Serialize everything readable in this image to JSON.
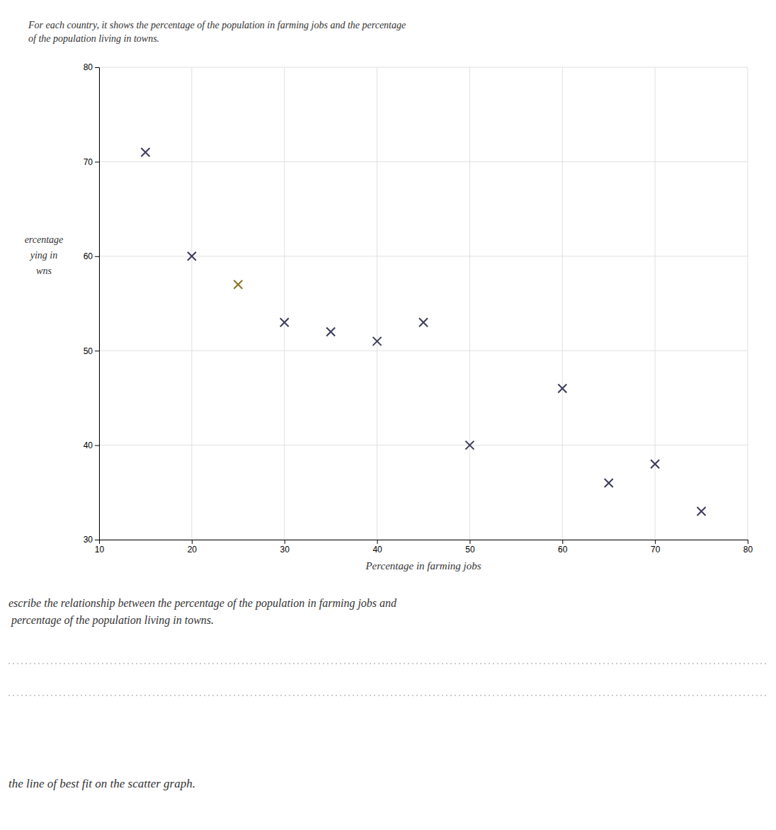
{
  "chart_data": {
    "type": "scatter",
    "subtitle": [
      "For each country, it shows the percentage of the population in farming jobs and the percentage",
      "of the population living in towns."
    ],
    "xlabel": "Percentage in farming jobs",
    "ylabel": [
      "ercentage",
      "ying in",
      "wns"
    ],
    "x": [
      15,
      20,
      25,
      30,
      35,
      40,
      45,
      50,
      60,
      65,
      70,
      75
    ],
    "values": [
      71,
      60,
      57,
      53,
      52,
      51,
      53,
      40,
      46,
      36,
      38,
      33
    ],
    "colors": [
      "#3a3a5a",
      "#3a3a5a",
      "#8a7020",
      "#3a3a5a",
      "#3a3a5a",
      "#3a3a5a",
      "#3a3a5a",
      "#3a3a5a",
      "#3a3a5a",
      "#3a3a5a",
      "#3a3a5a",
      "#3a3a5a"
    ],
    "marker": "x",
    "xlim": [
      10,
      80
    ],
    "ylim": [
      30,
      80
    ],
    "xticks": [
      10,
      20,
      30,
      40,
      50,
      60,
      70,
      80
    ],
    "yticks": [
      30,
      40,
      50,
      60,
      70,
      80
    ],
    "grid": true,
    "annotations": [
      "escribe the relationship between the percentage of the population in farming jobs and",
      " percentage of the population living in towns.",
      "the line of best fit on the scatter graph."
    ]
  }
}
